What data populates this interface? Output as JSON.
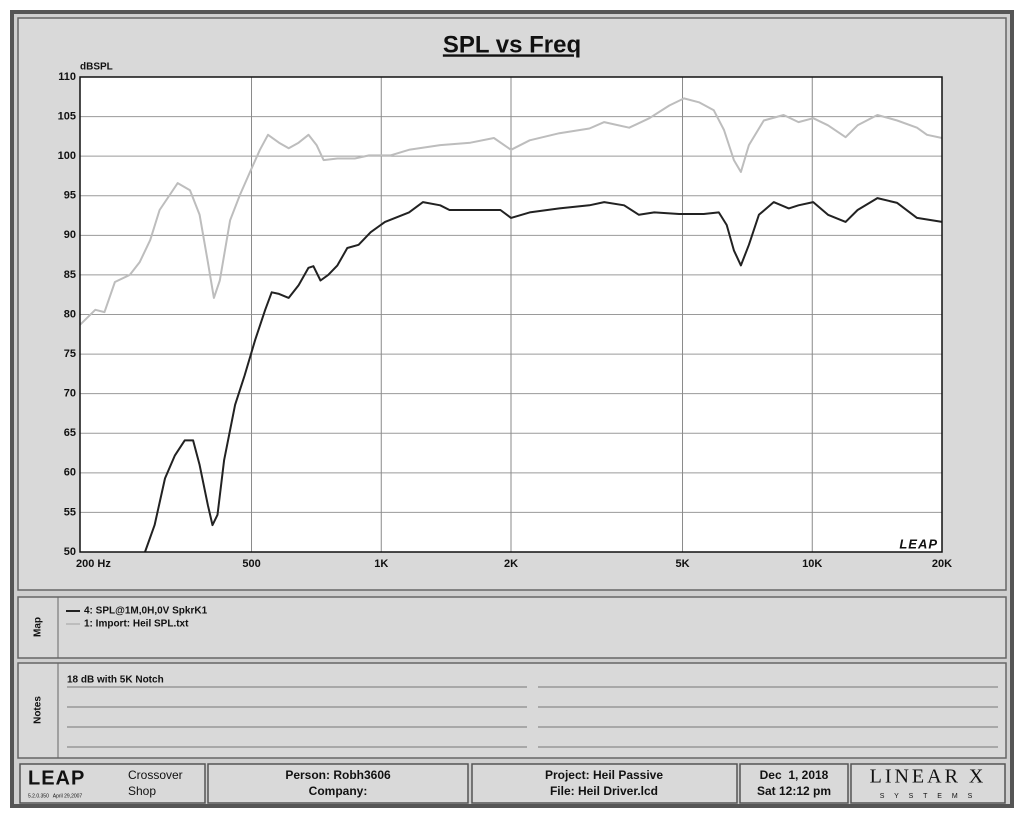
{
  "chart_data": {
    "type": "line",
    "title": "SPL vs Freq",
    "y_label": "dBSPL",
    "logo": "LEAP",
    "xscale": "log",
    "grid": true,
    "xlim": [
      200,
      20000
    ],
    "xticks": [
      {
        "value": 200,
        "label": "200 Hz"
      },
      500,
      {
        "value": 1000,
        "label": "1K"
      },
      {
        "value": 2000,
        "label": "2K"
      },
      {
        "value": 5000,
        "label": "5K"
      },
      {
        "value": 10000,
        "label": "10K"
      },
      {
        "value": 20000,
        "label": "20K"
      }
    ],
    "ylim": [
      50,
      110
    ],
    "yticks": [
      50,
      55,
      60,
      65,
      70,
      75,
      80,
      85,
      90,
      95,
      100,
      105,
      110
    ],
    "series": [
      {
        "name": "4: SPL@1M,0H,0V SpkrK1",
        "color": "#222222",
        "x": [
          283,
          298,
          315,
          332,
          350,
          366,
          379,
          396,
          406,
          417,
          432,
          458,
          482,
          510,
          538,
          557,
          579,
          610,
          643,
          678,
          696,
          723,
          753,
          791,
          834,
          886,
          945,
          1020,
          1160,
          1250,
          1370,
          1440,
          1610,
          1790,
          1890,
          2000,
          2210,
          2590,
          3040,
          3290,
          3660,
          3960,
          4300,
          4910,
          5600,
          6070,
          6330,
          6580,
          6830,
          7130,
          7520,
          8140,
          8820,
          9290,
          10050,
          10880,
          11950,
          12740,
          14160,
          15740,
          17500,
          20000
        ],
        "values": [
          50,
          53.4,
          59.3,
          62.2,
          64.1,
          64.1,
          61.0,
          55.9,
          53.4,
          54.7,
          61.6,
          68.6,
          72.3,
          76.8,
          80.6,
          82.8,
          82.6,
          82.1,
          83.7,
          85.9,
          86.1,
          84.3,
          85.0,
          86.2,
          88.4,
          88.8,
          90.4,
          91.7,
          92.9,
          94.2,
          93.8,
          93.2,
          93.2,
          93.2,
          93.2,
          92.2,
          92.9,
          93.4,
          93.8,
          94.2,
          93.8,
          92.6,
          92.9,
          92.7,
          92.7,
          92.9,
          91.3,
          88.1,
          86.2,
          88.8,
          92.6,
          94.2,
          93.4,
          93.8,
          94.2,
          92.6,
          91.7,
          93.2,
          94.7,
          94.1,
          92.2,
          91.7
        ]
      },
      {
        "name": "1: Import: Heil SPL.txt",
        "color": "#bdbdbd",
        "x": [
          200,
          217,
          228,
          241,
          261,
          275,
          291,
          306,
          323,
          337,
          360,
          379,
          396,
          409,
          422,
          446,
          470,
          496,
          523,
          546,
          579,
          610,
          643,
          678,
          708,
          735,
          791,
          868,
          937,
          1050,
          1160,
          1370,
          1610,
          1825,
          2000,
          2210,
          2590,
          3040,
          3290,
          3760,
          4190,
          4660,
          5040,
          5460,
          5910,
          6240,
          6580,
          6830,
          7130,
          7720,
          8580,
          9290,
          10050,
          10880,
          11950,
          12740,
          14160,
          15740,
          17500,
          18460,
          20000
        ],
        "values": [
          78.7,
          80.6,
          80.3,
          84.1,
          85.0,
          86.6,
          89.4,
          93.2,
          95.1,
          96.6,
          95.7,
          92.6,
          86.6,
          82.1,
          84.3,
          91.9,
          95.1,
          98.0,
          100.8,
          102.7,
          101.7,
          101.0,
          101.7,
          102.7,
          101.4,
          99.5,
          99.7,
          99.7,
          100.1,
          100.1,
          100.8,
          101.4,
          101.7,
          102.3,
          100.8,
          102.0,
          102.9,
          103.5,
          104.3,
          103.6,
          104.8,
          106.4,
          107.3,
          106.8,
          105.8,
          103.3,
          99.5,
          98.0,
          101.4,
          104.5,
          105.2,
          104.3,
          104.8,
          103.9,
          102.4,
          103.9,
          105.2,
          104.5,
          103.6,
          102.7,
          102.3
        ]
      }
    ]
  },
  "map": {
    "label": "Map"
  },
  "notes": {
    "label": "Notes",
    "text": "18 dB with 5K Notch"
  },
  "footer": {
    "logo": "LEAP",
    "version": "5.2.0.350   April 29,2007",
    "product": [
      "Crossover",
      "Shop"
    ],
    "person": "Person: Robh3606",
    "company": "Company:",
    "project": "Project: Heil Passive",
    "file": "File: Heil Driver.lcd",
    "date": "Dec  1, 2018",
    "time": "Sat 12:12 pm",
    "brand": "LINEAR X",
    "brand_sub": "S Y S T E M S"
  }
}
